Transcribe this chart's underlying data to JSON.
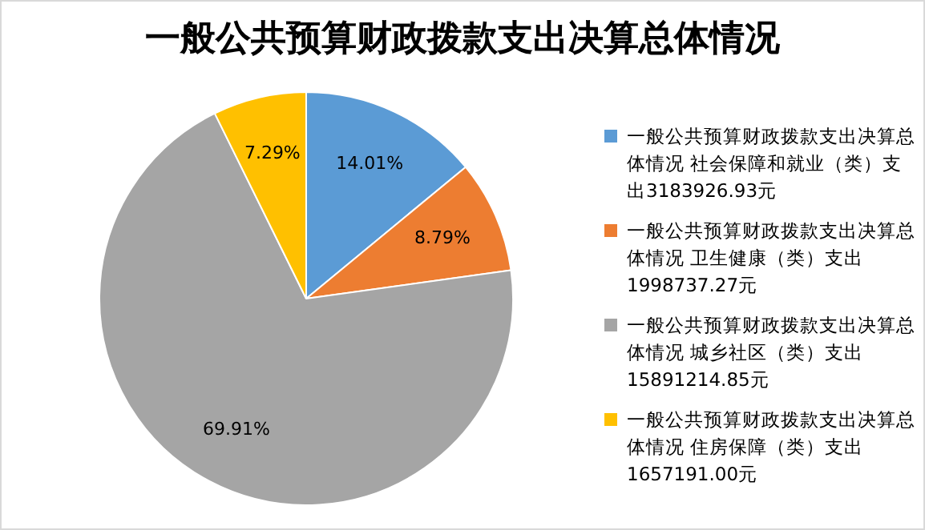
{
  "chart_data": {
    "type": "pie",
    "title": "一般公共预算财政拨款支出决算总体情况",
    "categories": [
      "一般公共预算财政拨款支出决算总体情况 社会保障和就业（类）支出3183926.93元",
      "一般公共预算财政拨款支出决算总体情况 卫生健康（类）支出1998737.27元",
      "一般公共预算财政拨款支出决算总体情况 城乡社区（类）支出15891214.85元",
      "一般公共预算财政拨款支出决算总体情况 住房保障（类）支出1657191.00元"
    ],
    "values": [
      14.01,
      8.79,
      69.91,
      7.29
    ],
    "value_labels": [
      "14.01%",
      "8.79%",
      "69.91%",
      "7.29%"
    ],
    "colors": [
      "#5b9bd5",
      "#ed7d31",
      "#a5a5a5",
      "#ffc000"
    ],
    "legend": "right"
  }
}
